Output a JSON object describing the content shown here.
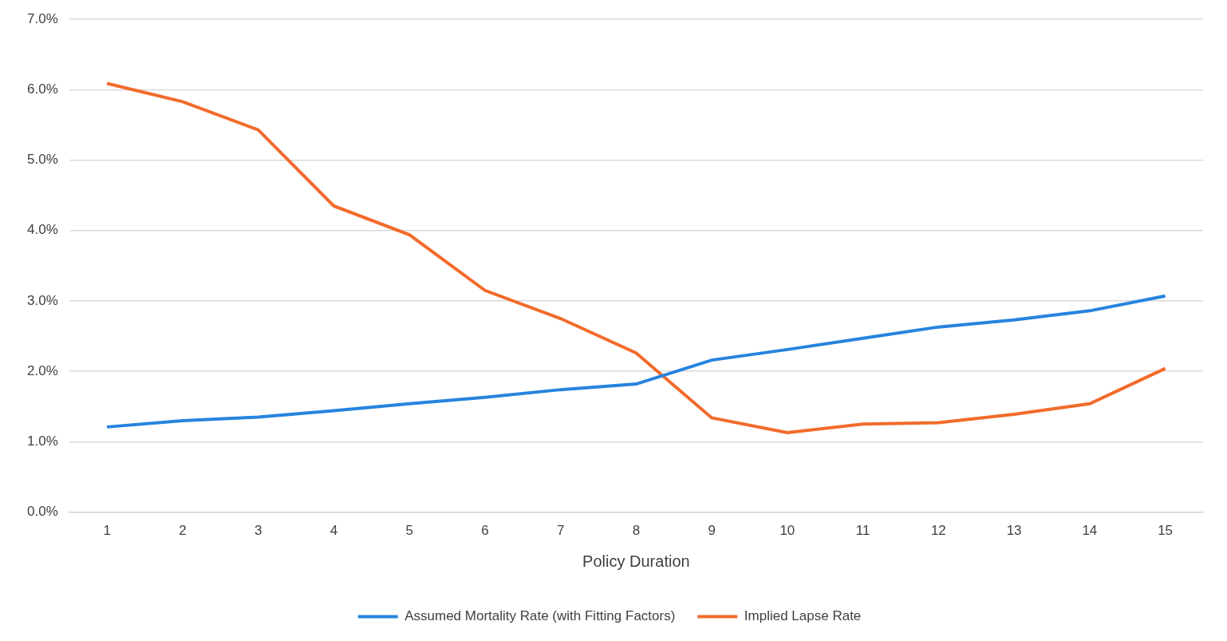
{
  "chart_data": {
    "type": "line",
    "x_label": "Policy Duration",
    "categories": [
      "1",
      "2",
      "3",
      "4",
      "5",
      "6",
      "7",
      "8",
      "9",
      "10",
      "11",
      "12",
      "13",
      "14",
      "15"
    ],
    "series": [
      {
        "name": "Assumed Mortality Rate (with Fitting Factors)",
        "color": "#2684de",
        "marker": "none",
        "line_style": "solid",
        "values": [
          1.21,
          1.3,
          1.35,
          1.44,
          1.54,
          1.63,
          1.74,
          1.82,
          2.16,
          2.31,
          2.47,
          2.63,
          2.73,
          2.86,
          3.07
        ]
      },
      {
        "name": "Implied Lapse Rate",
        "color": "#f26b2b",
        "marker": "none",
        "line_style": "solid",
        "values": [
          6.09,
          5.83,
          5.43,
          4.35,
          3.94,
          3.15,
          2.75,
          2.26,
          1.34,
          1.13,
          1.25,
          1.27,
          1.39,
          1.54,
          2.04
        ]
      }
    ],
    "ylim": [
      0,
      7
    ],
    "yticks": [
      {
        "value": 0,
        "label": "0.0%"
      },
      {
        "value": 1,
        "label": "1.0%"
      },
      {
        "value": 2,
        "label": "2.0%"
      },
      {
        "value": 3,
        "label": "3.0%"
      },
      {
        "value": 4,
        "label": "4.0%"
      },
      {
        "value": 5,
        "label": "5.0%"
      },
      {
        "value": 6,
        "label": "6.0%"
      },
      {
        "value": 7,
        "label": "7.0%"
      }
    ],
    "grid": true,
    "legend": "bottom"
  }
}
